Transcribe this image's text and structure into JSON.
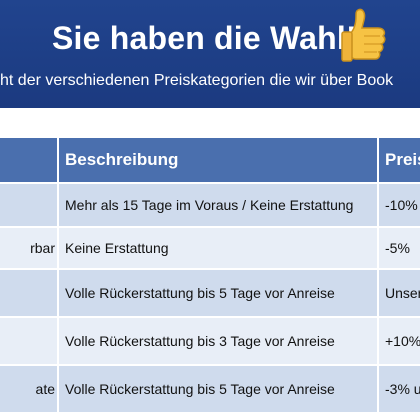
{
  "header": {
    "title": "Sie haben die Wahl!",
    "subtitle": "cht der verschiedenen Preiskategorien die wir über Book",
    "thumb_icon": "thumbs-up-icon",
    "background": "#1e3f88"
  },
  "table": {
    "columns": [
      "",
      "Beschreibung",
      "Preis"
    ],
    "rows": [
      {
        "category": "",
        "description": "Mehr als 15 Tage im Voraus / Keine Erstattung",
        "price": "-10%"
      },
      {
        "category": "rbar",
        "description": "Keine Erstattung",
        "price": "-5%"
      },
      {
        "category": "",
        "description": "Volle Rückerstattung bis 5 Tage vor Anreise",
        "price": "Unser"
      },
      {
        "category": "",
        "description": "Volle Rückerstattung bis 3 Tage vor Anreise",
        "price": "+10%"
      },
      {
        "category": "ate",
        "description": "Volle Rückerstattung bis 5 Tage vor Anreise",
        "price": "-3% u"
      }
    ],
    "colors": {
      "header": "#4a6fae",
      "row_dark": "#cfdbed",
      "row_light": "#e8eef7"
    }
  }
}
